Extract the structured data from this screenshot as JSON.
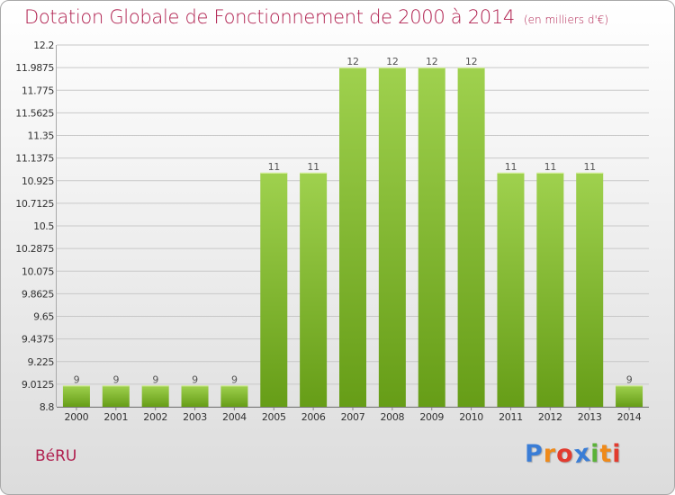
{
  "title": "Dotation Globale de Fonctionnement de 2000 à 2014",
  "unit": "(en milliers d'€)",
  "commune": "BéRU",
  "logo": "Proxiti",
  "colors": {
    "title": "#b0204f",
    "bar_light": "#9fd14e",
    "bar_dark": "#669d17",
    "logo": [
      "#3a7dd6",
      "#ef8a1a",
      "#e23b2e",
      "#3a7dd6",
      "#5bb239",
      "#ef8a1a",
      "#e23b2e"
    ]
  },
  "chart_data": {
    "type": "bar",
    "title": "Dotation Globale de Fonctionnement de 2000 à 2014",
    "categories": [
      "2000",
      "2001",
      "2002",
      "2003",
      "2004",
      "2005",
      "2006",
      "2007",
      "2008",
      "2009",
      "2010",
      "2011",
      "2012",
      "2013",
      "2014"
    ],
    "values": [
      9,
      9,
      9,
      9,
      9,
      11,
      11,
      12,
      12,
      12,
      12,
      11,
      11,
      11,
      9
    ],
    "data_labels": [
      "9",
      "9",
      "9",
      "9",
      "9",
      "11",
      "11",
      "12",
      "12",
      "12",
      "12",
      "11",
      "11",
      "11",
      "9"
    ],
    "bar_tops": [
      9.0,
      9.0,
      9.0,
      9.0,
      9.0,
      11.0,
      11.0,
      11.9875,
      11.9875,
      11.9875,
      11.9875,
      11.0,
      11.0,
      11.0,
      9.0
    ],
    "y_ticks": [
      "12.2",
      "11.9875",
      "11.775",
      "11.5625",
      "11.35",
      "11.1375",
      "10.925",
      "10.7125",
      "10.5",
      "10.2875",
      "10.075",
      "9.8625",
      "9.65",
      "9.4375",
      "9.225",
      "9.0125",
      "8.8"
    ],
    "ylim": [
      8.8,
      12.2
    ],
    "xlabel": "",
    "ylabel": "",
    "grid": true
  }
}
